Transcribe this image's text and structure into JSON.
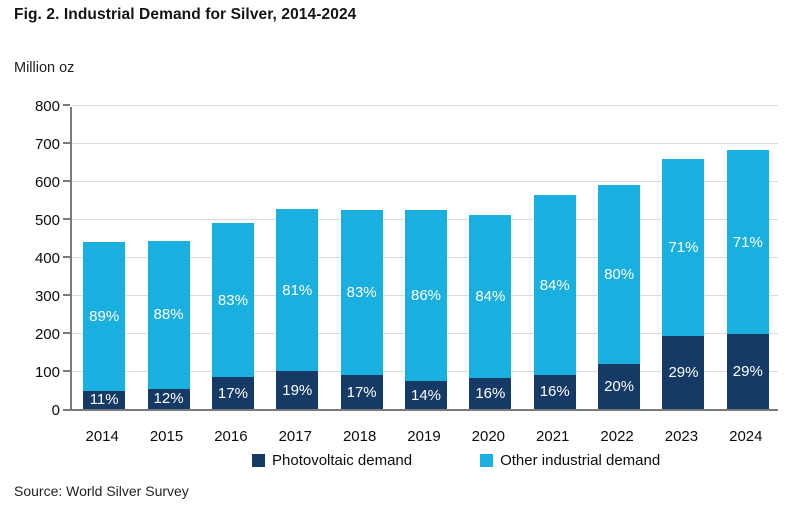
{
  "title": "Fig. 2. Industrial Demand for Silver, 2014-2024",
  "y_axis_label": "Million oz",
  "source": "Source: World Silver Survey",
  "colors": {
    "photovoltaic": "#153a66",
    "other_industrial": "#19afde",
    "gridline": "#dbdbdb",
    "axis": "#7a7a7a",
    "bar_label_text": "#ffffff"
  },
  "chart_data": {
    "type": "bar",
    "stacked": true,
    "title": "Fig. 2. Industrial Demand for Silver, 2014-2024",
    "ylabel": "Million oz",
    "xlabel": "",
    "ylim": [
      0,
      800
    ],
    "y_ticks": [
      0,
      100,
      200,
      300,
      400,
      500,
      600,
      700,
      800
    ],
    "grid": "horizontal",
    "legend_position": "bottom",
    "categories": [
      "2014",
      "2015",
      "2016",
      "2017",
      "2018",
      "2019",
      "2020",
      "2021",
      "2022",
      "2023",
      "2024"
    ],
    "totals": [
      440,
      443,
      490,
      526,
      525,
      523,
      510,
      562,
      590,
      658,
      681
    ],
    "series": [
      {
        "name": "Photovoltaic demand",
        "color": "#153a66",
        "values": [
          48,
          53,
          83,
          100,
          89,
          73,
          82,
          90,
          118,
          191,
          198
        ],
        "pct_labels": [
          "11%",
          "12%",
          "17%",
          "19%",
          "17%",
          "14%",
          "16%",
          "16%",
          "20%",
          "29%",
          "29%"
        ]
      },
      {
        "name": "Other industrial demand",
        "color": "#19afde",
        "values": [
          392,
          390,
          407,
          426,
          436,
          450,
          428,
          472,
          472,
          467,
          483
        ],
        "pct_labels": [
          "89%",
          "88%",
          "83%",
          "81%",
          "83%",
          "86%",
          "84%",
          "84%",
          "80%",
          "71%",
          "71%"
        ]
      }
    ]
  }
}
